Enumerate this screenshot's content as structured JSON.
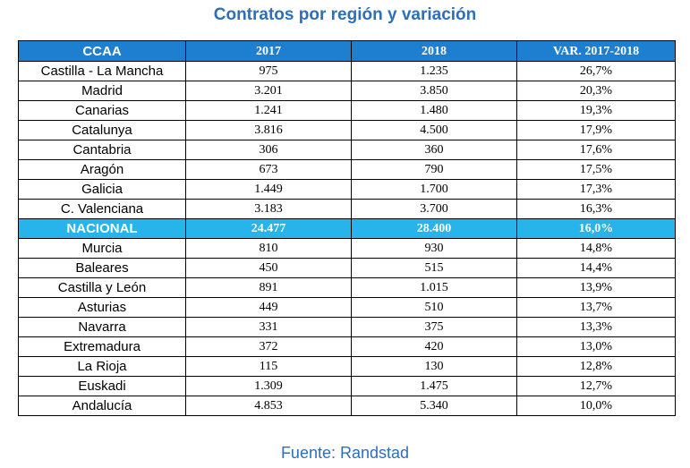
{
  "title": "Contratos por región y variación",
  "headers": [
    "CCAA",
    "2017",
    "2018",
    "VAR. 2017-2018"
  ],
  "rows": [
    {
      "region": "Castilla - La Mancha",
      "y2017": "975",
      "y2018": "1.235",
      "var": "26,7%",
      "highlight": false
    },
    {
      "region": "Madrid",
      "y2017": "3.201",
      "y2018": "3.850",
      "var": "20,3%",
      "highlight": false
    },
    {
      "region": "Canarias",
      "y2017": "1.241",
      "y2018": "1.480",
      "var": "19,3%",
      "highlight": false
    },
    {
      "region": "Catalunya",
      "y2017": "3.816",
      "y2018": "4.500",
      "var": "17,9%",
      "highlight": false
    },
    {
      "region": "Cantabria",
      "y2017": "306",
      "y2018": "360",
      "var": "17,6%",
      "highlight": false
    },
    {
      "region": "Aragón",
      "y2017": "673",
      "y2018": "790",
      "var": "17,5%",
      "highlight": false
    },
    {
      "region": "Galicia",
      "y2017": "1.449",
      "y2018": "1.700",
      "var": "17,3%",
      "highlight": false
    },
    {
      "region": "C. Valenciana",
      "y2017": "3.183",
      "y2018": "3.700",
      "var": "16,3%",
      "highlight": false
    },
    {
      "region": "NACIONAL",
      "y2017": "24.477",
      "y2018": "28.400",
      "var": "16,0%",
      "highlight": true
    },
    {
      "region": "Murcia",
      "y2017": "810",
      "y2018": "930",
      "var": "14,8%",
      "highlight": false
    },
    {
      "region": "Baleares",
      "y2017": "450",
      "y2018": "515",
      "var": "14,4%",
      "highlight": false
    },
    {
      "region": "Castilla y León",
      "y2017": "891",
      "y2018": "1.015",
      "var": "13,9%",
      "highlight": false
    },
    {
      "region": "Asturias",
      "y2017": "449",
      "y2018": "510",
      "var": "13,7%",
      "highlight": false
    },
    {
      "region": "Navarra",
      "y2017": "331",
      "y2018": "375",
      "var": "13,3%",
      "highlight": false
    },
    {
      "region": "Extremadura",
      "y2017": "372",
      "y2018": "420",
      "var": "13,0%",
      "highlight": false
    },
    {
      "region": "La Rioja",
      "y2017": "115",
      "y2018": "130",
      "var": "12,8%",
      "highlight": false
    },
    {
      "region": "Euskadi",
      "y2017": "1.309",
      "y2018": "1.475",
      "var": "12,7%",
      "highlight": false
    },
    {
      "region": "Andalucía",
      "y2017": "4.853",
      "y2018": "5.340",
      "var": "10,0%",
      "highlight": false
    }
  ],
  "source": "Fuente: Randstad",
  "colors": {
    "title": "#2e6fb8",
    "header_bg": "#1e7fd0",
    "highlight_bg": "#26b4ea"
  }
}
